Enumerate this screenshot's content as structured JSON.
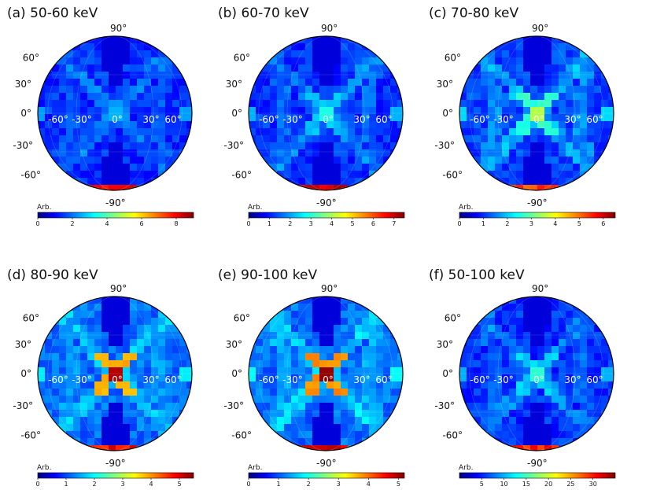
{
  "chart_data": [
    {
      "type": "heatmap",
      "title": "(a) 50-60 keV",
      "colorbar": {
        "label": "Arb.",
        "ticks": [
          "0",
          "2",
          "4",
          "6",
          "8"
        ],
        "range": [
          0,
          9
        ]
      },
      "lat_ticks": [
        "90°",
        "60°",
        "30°",
        "0°",
        "-30°",
        "-60°",
        "-90°"
      ],
      "lon_ticks": [
        "-60°",
        "-30°",
        "0°",
        "30°",
        "60°"
      ],
      "peak": "orange-red bands at ±90° latitude; faint cross at 0°,0°"
    },
    {
      "type": "heatmap",
      "title": "(b) 60-70 keV",
      "colorbar": {
        "label": "Arb.",
        "ticks": [
          "0",
          "1",
          "2",
          "3",
          "4",
          "5",
          "6",
          "7"
        ],
        "range": [
          0,
          7.5
        ]
      },
      "lat_ticks": [
        "90°",
        "60°",
        "30°",
        "0°",
        "-30°",
        "-60°",
        "-90°"
      ],
      "lon_ticks": [
        "-60°",
        "-30°",
        "0°",
        "30°",
        "60°"
      ],
      "peak": "orange-red bands at ±90° latitude; green cross at 0°,0°"
    },
    {
      "type": "heatmap",
      "title": "(c) 70-80 keV",
      "colorbar": {
        "label": "Arb.",
        "ticks": [
          "0",
          "1",
          "2",
          "3",
          "4",
          "5",
          "6"
        ],
        "range": [
          0,
          6.5
        ]
      },
      "lat_ticks": [
        "90°",
        "60°",
        "30°",
        "0°",
        "-30°",
        "-60°",
        "-90°"
      ],
      "lon_ticks": [
        "-60°",
        "-30°",
        "0°",
        "30°",
        "60°"
      ],
      "peak": "orange bands at ±90° latitude; green-yellow cross at 0°,0°"
    },
    {
      "type": "heatmap",
      "title": "(d) 80-90 keV",
      "colorbar": {
        "label": "Arb.",
        "ticks": [
          "0",
          "1",
          "2",
          "3",
          "4",
          "5"
        ],
        "range": [
          0,
          5.5
        ]
      },
      "lat_ticks": [
        "90°",
        "60°",
        "30°",
        "0°",
        "-30°",
        "-60°",
        "-90°"
      ],
      "lon_ticks": [
        "-60°",
        "-30°",
        "0°",
        "30°",
        "60°"
      ],
      "peak": "red centre cross at 0°,0°"
    },
    {
      "type": "heatmap",
      "title": "(e) 90-100 keV",
      "colorbar": {
        "label": "Arb.",
        "ticks": [
          "0",
          "1",
          "2",
          "3",
          "4",
          "5"
        ],
        "range": [
          0,
          5.2
        ]
      },
      "lat_ticks": [
        "90°",
        "60°",
        "30°",
        "0°",
        "-30°",
        "-60°",
        "-90°"
      ],
      "lon_ticks": [
        "-60°",
        "-30°",
        "0°",
        "30°",
        "60°"
      ],
      "peak": "red-orange centre cross at 0°,0°"
    },
    {
      "type": "heatmap",
      "title": "(f) 50-100 keV",
      "colorbar": {
        "label": "Arb.",
        "ticks": [
          "5",
          "10",
          "15",
          "20",
          "25",
          "30"
        ],
        "range": [
          0,
          35
        ]
      },
      "lat_ticks": [
        "90°",
        "60°",
        "30°",
        "0°",
        "-30°",
        "-60°",
        "-90°"
      ],
      "lon_ticks": [
        "-60°",
        "-30°",
        "0°",
        "30°",
        "60°"
      ],
      "peak": "orange-red bands at ±90° latitude; green cross at 0°,0°"
    }
  ]
}
